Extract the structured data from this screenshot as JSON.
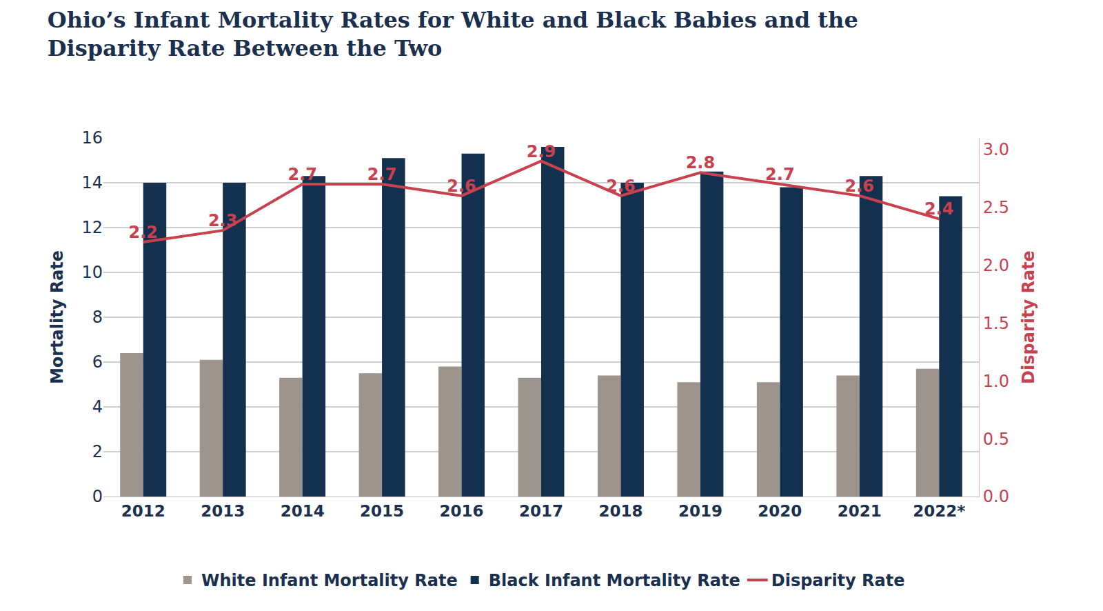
{
  "chart_data": {
    "type": "bar",
    "title": "Ohio’s Infant Mortality Rates for White and Black Babies and the\nDisparity Rate Between the Two",
    "categories": [
      "2012",
      "2013",
      "2014",
      "2015",
      "2016",
      "2017",
      "2018",
      "2019",
      "2020",
      "2021",
      "2022*"
    ],
    "y_label": "Mortality Rate",
    "y2_label": "Disparity Rate",
    "ylim": [
      0,
      16
    ],
    "yticks": [
      0,
      2,
      4,
      6,
      8,
      10,
      12,
      14,
      16
    ],
    "y2lim": [
      0,
      3.1
    ],
    "y2ticks": [
      {
        "value": 0,
        "label": "0.0"
      },
      0.5,
      {
        "value": 1,
        "label": "1.0"
      },
      1.5,
      {
        "value": 2,
        "label": "2.0"
      },
      2.5,
      {
        "value": 3,
        "label": "3.0"
      }
    ],
    "grid": true,
    "legend": "bottom",
    "series": [
      {
        "name": "White Infant Mortality Rate",
        "type": "bar",
        "color": "#9d958d",
        "values": [
          6.4,
          6.1,
          5.3,
          5.5,
          5.8,
          5.3,
          5.4,
          5.1,
          5.1,
          5.4,
          5.7
        ]
      },
      {
        "name": "Black Infant Mortality Rate",
        "type": "bar",
        "color": "#14304f",
        "values": [
          14.0,
          14.0,
          14.3,
          15.1,
          15.3,
          15.6,
          14.0,
          14.5,
          13.8,
          14.3,
          13.4
        ]
      },
      {
        "name": "Disparity Rate",
        "type": "line",
        "color": "#c8414f",
        "axis": "y2",
        "data_labels": true,
        "values": [
          2.2,
          2.3,
          2.7,
          2.7,
          2.6,
          2.9,
          2.6,
          2.8,
          2.7,
          2.6,
          2.4
        ]
      }
    ]
  }
}
